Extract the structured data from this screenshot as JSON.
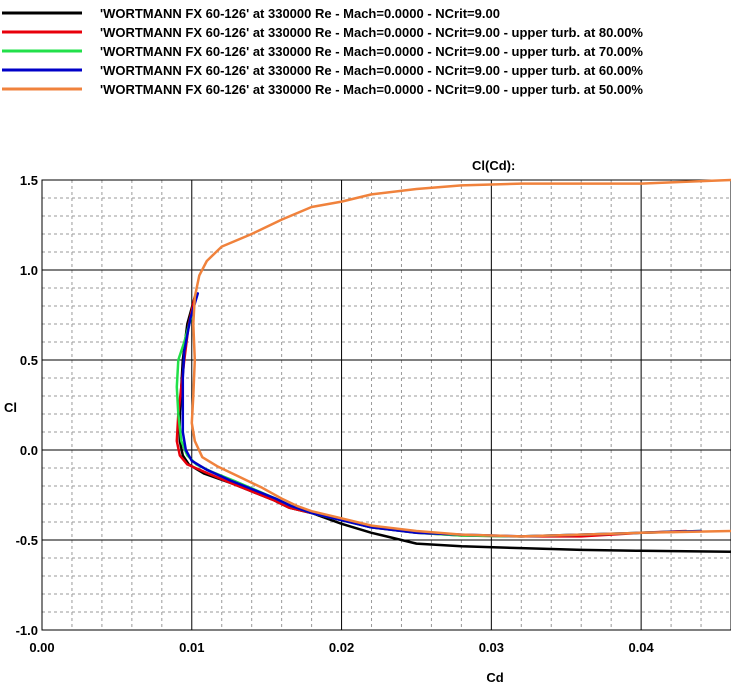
{
  "chart_data": {
    "type": "line",
    "title": "Cl(Cd):",
    "xlabel": "Cd",
    "ylabel": "Cl",
    "xlim": [
      0.0,
      0.046
    ],
    "ylim": [
      -1.0,
      1.5
    ],
    "x_ticks": [
      "0.00",
      "0.01",
      "0.02",
      "0.03",
      "0.04"
    ],
    "y_ticks": [
      "1.5",
      "1.0",
      "0.5",
      "0.0",
      "-0.5",
      "-1.0"
    ],
    "grid": true,
    "legend_position": "top-left",
    "series": [
      {
        "name": "'WORTMANN FX 60-126' at 330000 Re - Mach=0.0000 - NCrit=9.00",
        "color": "#000000",
        "points": [
          [
            0.0102,
            0.85
          ],
          [
            0.0097,
            0.7
          ],
          [
            0.0094,
            0.5
          ],
          [
            0.0093,
            0.35
          ],
          [
            0.0092,
            0.2
          ],
          [
            0.0092,
            0.05
          ],
          [
            0.0094,
            -0.03
          ],
          [
            0.0098,
            -0.08
          ],
          [
            0.0108,
            -0.13
          ],
          [
            0.0125,
            -0.18
          ],
          [
            0.014,
            -0.23
          ],
          [
            0.0155,
            -0.28
          ],
          [
            0.0165,
            -0.32
          ],
          [
            0.018,
            -0.35
          ],
          [
            0.02,
            -0.41
          ],
          [
            0.022,
            -0.46
          ],
          [
            0.025,
            -0.52
          ],
          [
            0.028,
            -0.535
          ],
          [
            0.032,
            -0.545
          ],
          [
            0.036,
            -0.555
          ],
          [
            0.04,
            -0.56
          ],
          [
            0.046,
            -0.565
          ]
        ]
      },
      {
        "name": "'WORTMANN FX 60-126' at 330000 Re - Mach=0.0000 - NCrit=9.00 - upper turb. at 80.00%",
        "color": "#e8000b",
        "points": [
          [
            0.0102,
            0.85
          ],
          [
            0.0098,
            0.7
          ],
          [
            0.0095,
            0.5
          ],
          [
            0.0093,
            0.35
          ],
          [
            0.0091,
            0.2
          ],
          [
            0.009,
            0.05
          ],
          [
            0.0092,
            -0.03
          ],
          [
            0.0097,
            -0.08
          ],
          [
            0.0108,
            -0.12
          ],
          [
            0.0125,
            -0.18
          ],
          [
            0.014,
            -0.23
          ],
          [
            0.0155,
            -0.28
          ],
          [
            0.0165,
            -0.32
          ],
          [
            0.018,
            -0.35
          ],
          [
            0.02,
            -0.39
          ],
          [
            0.022,
            -0.43
          ],
          [
            0.025,
            -0.46
          ],
          [
            0.028,
            -0.475
          ],
          [
            0.032,
            -0.48
          ],
          [
            0.036,
            -0.48
          ],
          [
            0.04,
            -0.46
          ],
          [
            0.043,
            -0.45
          ]
        ]
      },
      {
        "name": "'WORTMANN FX 60-126' at 330000 Re - Mach=0.0000 - NCrit=9.00 - upper turb. at 70.00%",
        "color": "#22e04a",
        "points": [
          [
            0.01,
            0.75
          ],
          [
            0.0095,
            0.6
          ],
          [
            0.0091,
            0.5
          ],
          [
            0.009,
            0.35
          ],
          [
            0.0091,
            0.2
          ],
          [
            0.0093,
            0.05
          ],
          [
            0.0097,
            -0.03
          ],
          [
            0.0103,
            -0.08
          ],
          [
            0.0113,
            -0.12
          ],
          [
            0.0128,
            -0.17
          ],
          [
            0.0142,
            -0.22
          ],
          [
            0.0156,
            -0.27
          ],
          [
            0.0166,
            -0.31
          ],
          [
            0.018,
            -0.35
          ],
          [
            0.02,
            -0.39
          ],
          [
            0.022,
            -0.43
          ],
          [
            0.025,
            -0.46
          ],
          [
            0.028,
            -0.475
          ],
          [
            0.032,
            -0.48
          ],
          [
            0.036,
            -0.47
          ],
          [
            0.04,
            -0.46
          ],
          [
            0.044,
            -0.45
          ]
        ]
      },
      {
        "name": "'WORTMANN FX 60-126' at 330000 Re - Mach=0.0000 - NCrit=9.00 - upper turb. at 60.00%",
        "color": "#0000c8",
        "points": [
          [
            0.0104,
            0.87
          ],
          [
            0.0099,
            0.73
          ],
          [
            0.0095,
            0.55
          ],
          [
            0.0094,
            0.4
          ],
          [
            0.0094,
            0.25
          ],
          [
            0.0094,
            0.1
          ],
          [
            0.0096,
            0.0
          ],
          [
            0.01,
            -0.06
          ],
          [
            0.011,
            -0.11
          ],
          [
            0.0126,
            -0.17
          ],
          [
            0.0141,
            -0.22
          ],
          [
            0.0156,
            -0.27
          ],
          [
            0.0166,
            -0.31
          ],
          [
            0.018,
            -0.35
          ],
          [
            0.02,
            -0.39
          ],
          [
            0.022,
            -0.43
          ],
          [
            0.025,
            -0.46
          ],
          [
            0.028,
            -0.47
          ],
          [
            0.032,
            -0.48
          ],
          [
            0.036,
            -0.47
          ],
          [
            0.04,
            -0.46
          ],
          [
            0.044,
            -0.45
          ]
        ]
      },
      {
        "name": "'WORTMANN FX 60-126' at 330000 Re - Mach=0.0000 - NCrit=9.00 - upper turb. at 50.00%",
        "color": "#f0823c",
        "points": [
          [
            0.046,
            1.5
          ],
          [
            0.043,
            1.49
          ],
          [
            0.04,
            1.48
          ],
          [
            0.036,
            1.48
          ],
          [
            0.032,
            1.48
          ],
          [
            0.028,
            1.47
          ],
          [
            0.025,
            1.45
          ],
          [
            0.022,
            1.42
          ],
          [
            0.02,
            1.38
          ],
          [
            0.018,
            1.35
          ],
          [
            0.016,
            1.28
          ],
          [
            0.014,
            1.2
          ],
          [
            0.012,
            1.13
          ],
          [
            0.011,
            1.05
          ],
          [
            0.0105,
            0.97
          ],
          [
            0.0102,
            0.85
          ],
          [
            0.0101,
            0.7
          ],
          [
            0.0102,
            0.5
          ],
          [
            0.0101,
            0.3
          ],
          [
            0.01,
            0.15
          ],
          [
            0.0102,
            0.05
          ],
          [
            0.0107,
            -0.04
          ],
          [
            0.0117,
            -0.09
          ],
          [
            0.0132,
            -0.15
          ],
          [
            0.0147,
            -0.21
          ],
          [
            0.016,
            -0.27
          ],
          [
            0.017,
            -0.31
          ],
          [
            0.018,
            -0.34
          ],
          [
            0.02,
            -0.38
          ],
          [
            0.022,
            -0.42
          ],
          [
            0.025,
            -0.45
          ],
          [
            0.028,
            -0.47
          ],
          [
            0.032,
            -0.48
          ],
          [
            0.036,
            -0.47
          ],
          [
            0.04,
            -0.46
          ],
          [
            0.046,
            -0.45
          ]
        ]
      }
    ]
  }
}
